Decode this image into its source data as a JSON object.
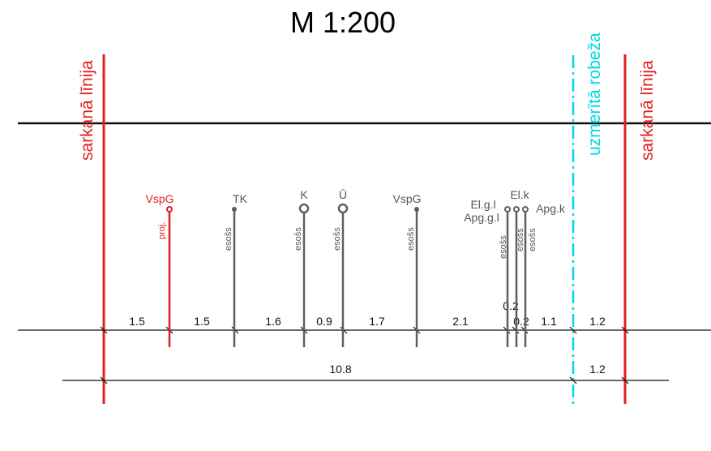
{
  "title": "M 1:200",
  "colors": {
    "red": "#e02020",
    "cyan": "#00d8e8",
    "gray": "#5f5f5f",
    "black": "#111111"
  },
  "boundary_labels": {
    "left": "sarkanā līnija",
    "right": "sarkanā līnija",
    "surveyed": "uzmerītā robeža"
  },
  "utilities": [
    {
      "id": "vspg-proj",
      "label": "VspG",
      "sublabel": "proj.",
      "symbol": "dot",
      "color": "red"
    },
    {
      "id": "tk",
      "label": "TK",
      "sublabel": "esošs",
      "symbol": "dot",
      "color": "gray"
    },
    {
      "id": "k",
      "label": "K",
      "sublabel": "esošs",
      "symbol": "ring",
      "color": "gray"
    },
    {
      "id": "u",
      "label": "Ū",
      "sublabel": "esošs",
      "symbol": "ring",
      "color": "gray"
    },
    {
      "id": "vspg",
      "label": "VspG",
      "sublabel": "esošs",
      "symbol": "dot",
      "color": "gray"
    },
    {
      "id": "elgl",
      "label": "El.g.l",
      "sublabel": "esošs",
      "symbol": "dot",
      "color": "gray"
    },
    {
      "id": "apggl",
      "label": "Apg.g.l",
      "sublabel": "",
      "symbol": "dot",
      "color": "gray"
    },
    {
      "id": "elk",
      "label": "El.k",
      "sublabel": "esošs",
      "symbol": "dot",
      "color": "gray"
    },
    {
      "id": "apgk",
      "label": "Apg.k",
      "sublabel": "esošs",
      "symbol": "dot",
      "color": "gray"
    }
  ],
  "dimensions_row1": [
    "1.5",
    "1.5",
    "1.6",
    "0.9",
    "1.7",
    "2.1",
    "0.2",
    "0.2",
    "1.1",
    "1.2"
  ],
  "dimensions_row2": [
    "10.8",
    "1.2"
  ]
}
